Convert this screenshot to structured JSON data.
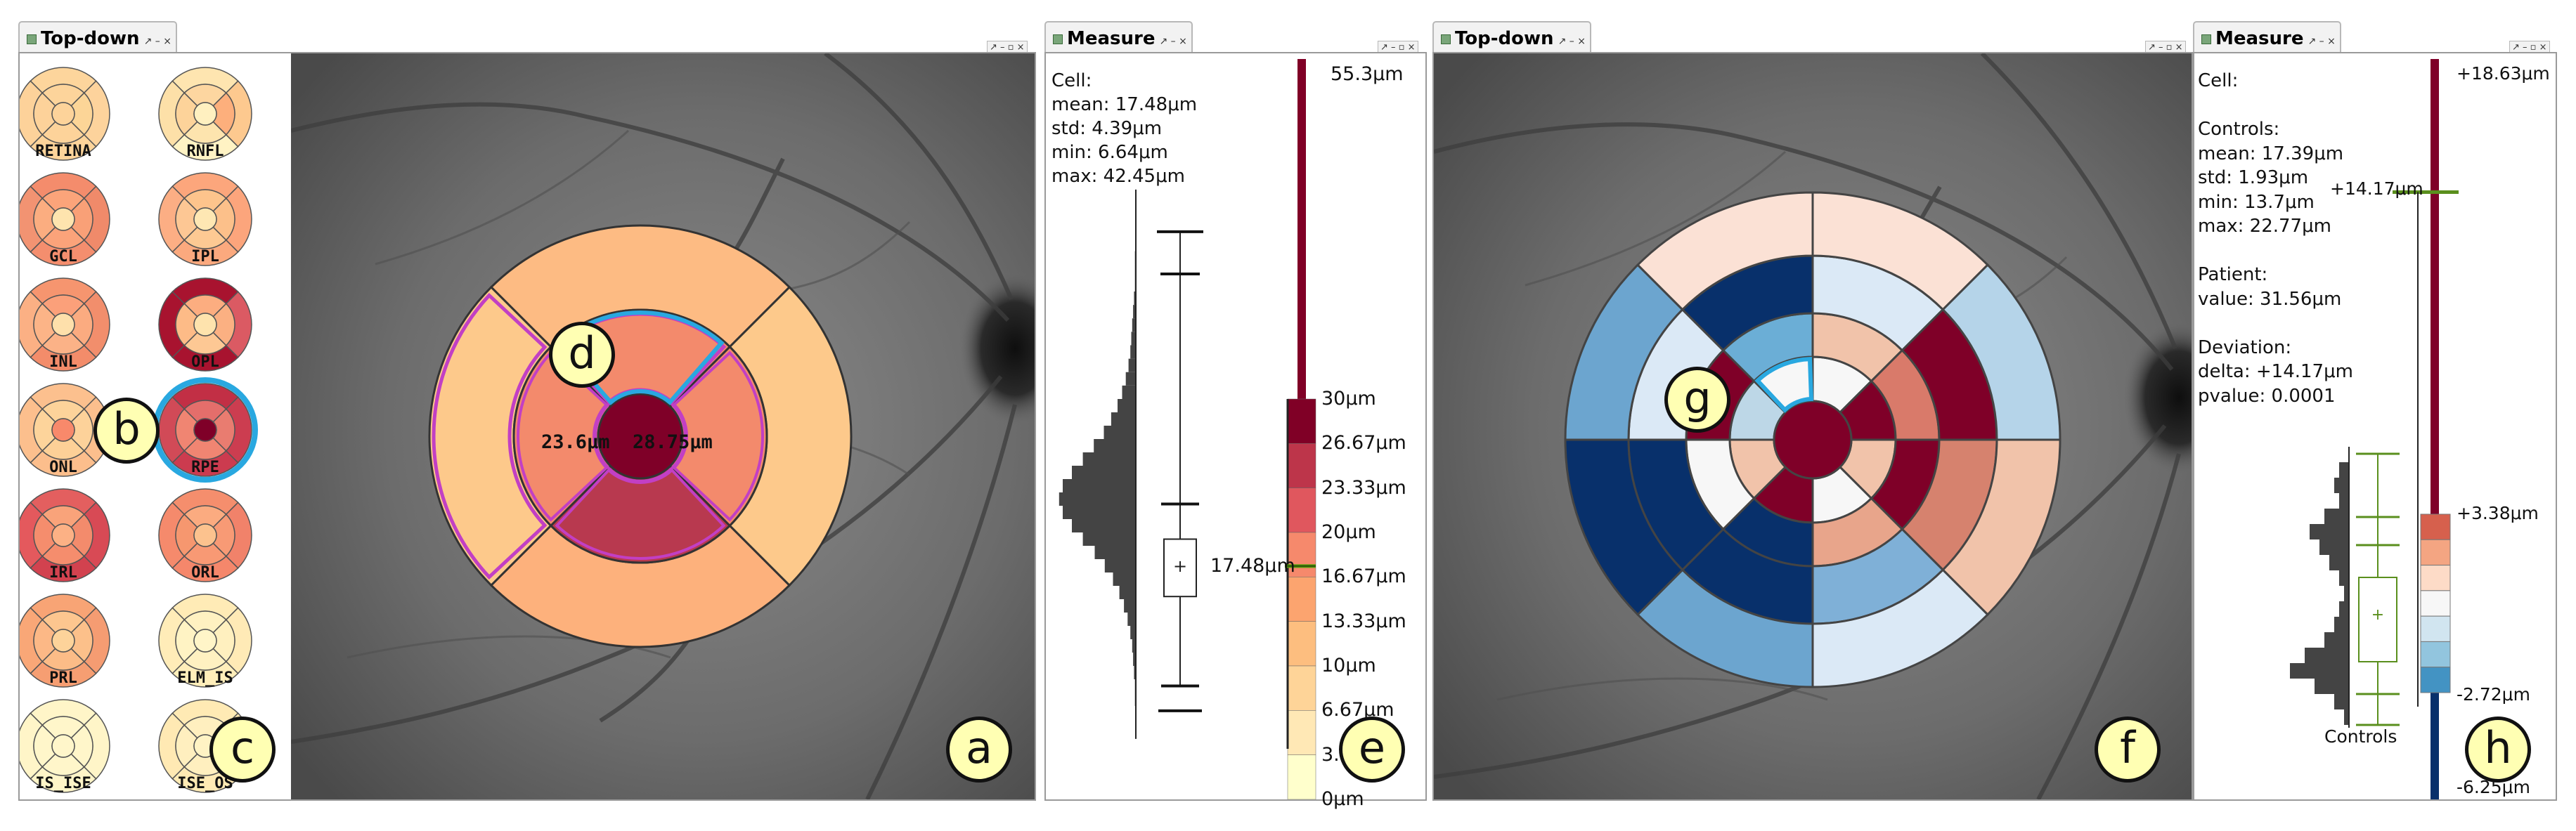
{
  "views": {
    "topdown_left": {
      "tab": "Top-down",
      "tab_controls": "↗ – ×"
    },
    "measure_left": {
      "tab": "Measure",
      "tab_controls": "↗ – ×"
    },
    "topdown_right": {
      "tab": "Top-down",
      "tab_controls": "↗ – ×"
    },
    "measure_right": {
      "tab": "Measure",
      "tab_controls": "↗ – ×"
    },
    "window_controls": "↗ – ▫ ×"
  },
  "layers": [
    {
      "name": "RETINA",
      "colors": [
        "#fdd39a",
        "#fdd49b",
        "#fdd39a",
        "#fdd29a",
        "#fcd597",
        "#fdd59c",
        "#fdd49a",
        "#fdd29a",
        "#fdd39c"
      ]
    },
    {
      "name": "RNFL",
      "colors": [
        "#fff0c0",
        "#fdd6a0",
        "#fde4ae",
        "#fdd39a",
        "#fdaf7c",
        "#fee5b0",
        "#fff3c4",
        "#fde0a8",
        "#fdc98f"
      ]
    },
    {
      "name": "GCL",
      "colors": [
        "#fee4ae",
        "#fba47a",
        "#fba37a",
        "#fbad80",
        "#f9a077",
        "#f48c6c",
        "#f48e6e",
        "#f29372",
        "#f08a6a"
      ]
    },
    {
      "name": "IPL",
      "colors": [
        "#fee7b3",
        "#fdc48c",
        "#fdc993",
        "#fdc794",
        "#fcc08a",
        "#fca67c",
        "#fba97e",
        "#fcae84",
        "#fca57c"
      ]
    },
    {
      "name": "INL",
      "colors": [
        "#fee0ab",
        "#fba07a",
        "#fbb287",
        "#fcb487",
        "#fbab80",
        "#f6956f",
        "#f38c6a",
        "#fbb084",
        "#f28e6c"
      ]
    },
    {
      "name": "OPL",
      "colors": [
        "#fee3ad",
        "#fcad80",
        "#fdc894",
        "#fdbb87",
        "#fbb082",
        "#a8132f",
        "#a8132f",
        "#a8132f",
        "#db5a63"
      ]
    },
    {
      "name": "ONL",
      "colors": [
        "#f8896b",
        "#fdd39a",
        "#fdd097",
        "#fdd49b",
        "#fdd29a",
        "#fcc08e",
        "#fcbe8c",
        "#fcbf8d",
        "#fcbf8d"
      ]
    },
    {
      "name": "RPE",
      "colors": [
        "#7f0028",
        "#e46e6b",
        "#f08572",
        "#f08572",
        "#e97c70",
        "#c22f45",
        "#cc3b4f",
        "#d14a57",
        "#cc3d50"
      ]
    },
    {
      "name": "IRL",
      "colors": [
        "#fcb185",
        "#f9a37a",
        "#f58d6d",
        "#f58d6d",
        "#f38b6c",
        "#e35f5f",
        "#d2424f",
        "#e4595d",
        "#d84a55"
      ]
    },
    {
      "name": "ORL",
      "colors": [
        "#fcc28e",
        "#fbab80",
        "#f89974",
        "#f6976f",
        "#f89a75",
        "#f58e6d",
        "#f5876b",
        "#f58a6c",
        "#f1826a"
      ]
    },
    {
      "name": "PRL",
      "colors": [
        "#fdd39a",
        "#fdc68f",
        "#fcbc87",
        "#fcb886",
        "#fcc08a",
        "#f8a475",
        "#f69e72",
        "#f9a777",
        "#f59c72"
      ]
    },
    {
      "name": "ELM_IS",
      "colors": [
        "#fff5c8",
        "#fff1c1",
        "#fff1c1",
        "#fff3c4",
        "#fff0bf",
        "#ffebb6",
        "#ffeeba",
        "#ffecb8",
        "#ffeab6"
      ]
    },
    {
      "name": "IS_ISE",
      "colors": [
        "#fff6ca",
        "#fff6ca",
        "#fff6ca",
        "#fff6ca",
        "#fff6ca",
        "#fff5c8",
        "#fff5c8",
        "#fff5c8",
        "#fff5c8"
      ]
    },
    {
      "name": "ISE_OS",
      "colors": [
        "#fff3c4",
        "#ffefbf",
        "#ffefbf",
        "#ffefbf",
        "#fff1c1",
        "#ffeab4",
        "#ffeab4",
        "#ffe9b3",
        "#ffe8b2"
      ]
    }
  ],
  "panel_labels": {
    "a": "a",
    "b": "b",
    "c": "c",
    "d": "d",
    "e": "e",
    "f": "f",
    "g": "g",
    "h": "h"
  },
  "left_map": {
    "center_value": "28.75μm",
    "inner_nasal_value": "23.6μm",
    "sector_colors": {
      "center": "#7f0028",
      "inner": [
        "#f38a6c",
        "#b8394f",
        "#f38a6c",
        "#f38a6c"
      ],
      "outer": [
        "#fdbb83",
        "#fdb17c",
        "#fdc98b",
        "#fdc98b"
      ]
    },
    "highlight_color": "#c23fc4",
    "selection_color": "#29a8e0"
  },
  "left_measure": {
    "stats_lines": [
      "Cell:",
      "mean: 17.48μm",
      "std: 4.39μm",
      "min: 6.64μm",
      "max: 42.45μm"
    ],
    "mean_label": "17.48μm",
    "scale": {
      "top_label": "55.3μm",
      "labels": [
        "30μm",
        "26.67μm",
        "23.33μm",
        "20μm",
        "16.67μm",
        "13.33μm",
        "10μm",
        "6.67μm",
        "3.33μm",
        "0μm"
      ],
      "bin_colors": [
        "#800026",
        "#bd354a",
        "#e0575e",
        "#f6896c",
        "#fca46f",
        "#fdbe7f",
        "#fed498",
        "#ffe8b5",
        "#ffffcc"
      ],
      "range_color": "#800026"
    },
    "histogram_counts": [
      0,
      0,
      1,
      1,
      2,
      3,
      4,
      6,
      9,
      13,
      18,
      25,
      34,
      45,
      58,
      70,
      80,
      84,
      80,
      70,
      58,
      46,
      35,
      27,
      20,
      15,
      11,
      8,
      6,
      5,
      4,
      3,
      2,
      1,
      1,
      1,
      0
    ]
  },
  "right_map": {
    "sector_colors": {
      "center": "#7f0028",
      "ring1": [
        "#f7f7f7",
        "#7f0028",
        "#f1c3aa",
        "#f7f7f7",
        "#7f0028",
        "#f1c3aa",
        "#bdd7e7",
        "#f7f7f7"
      ],
      "ring2": [
        "#f1c3aa",
        "#d97a6a",
        "#7f0028",
        "#e8a58b",
        "#08306b",
        "#f7f7f7",
        "#7f0028",
        "#6baed6"
      ],
      "ring3": [
        "#dbe9f6",
        "#7f0028",
        "#d6826e",
        "#7fb0d7",
        "#08306b",
        "#08306b",
        "#dbe9f6",
        "#08306b"
      ],
      "ring4": [
        "#fbe1d5",
        "#b5d4e9",
        "#f1c3aa",
        "#dbe9f6",
        "#6ca5cf",
        "#08306b",
        "#6ca5cf",
        "#fbe1d5"
      ]
    }
  },
  "right_measure": {
    "stats_lines": [
      "Cell:",
      "",
      "Controls:",
      "mean: 17.39μm",
      "std: 1.93μm",
      "min: 13.7μm",
      "max: 22.77μm",
      "",
      "Patient:",
      "value: 31.56μm",
      "",
      "Deviation:",
      "delta: +14.17μm",
      "pvalue: 0.0001"
    ],
    "marker_label": "+14.17μm",
    "top_label": "+18.63μm",
    "upper_label": "+3.38μm",
    "lower_label": "-2.72μm",
    "bottom_label": "-6.25μm",
    "controls_label": "Controls",
    "marker_color": "#5a8f1d",
    "bin_colors": [
      "#d6604d",
      "#f4a582",
      "#fddbc7",
      "#f7f7f7",
      "#d1e5f0",
      "#92c5de",
      "#4393c3"
    ],
    "histogram_counts": [
      0,
      2,
      3,
      2,
      5,
      8,
      6,
      4,
      2,
      1,
      2,
      3,
      5,
      9,
      12,
      7,
      3,
      1,
      0
    ]
  }
}
